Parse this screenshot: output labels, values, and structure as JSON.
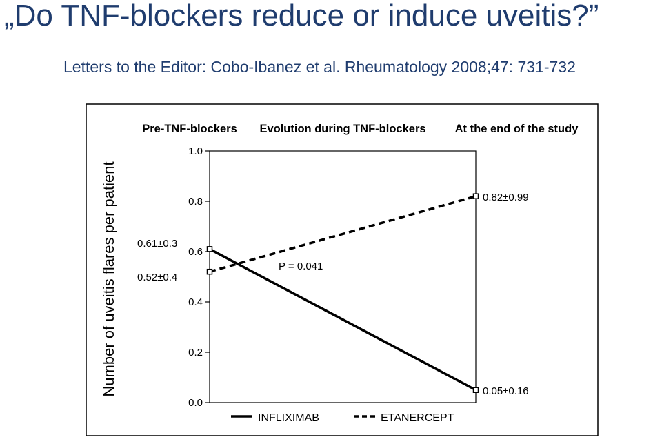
{
  "slide": {
    "title": "„Do TNF-blockers reduce or induce uveitis?”",
    "subtitle": "Letters to the Editor: Cobo-Ibanez et al. Rheumatology 2008;47: 731-732"
  },
  "chart_data": {
    "type": "line",
    "title": "",
    "column_headers": [
      "Pre-TNF-blockers",
      "Evolution during TNF-blockers",
      "At the end of the study"
    ],
    "ylabel": "Number of uveitis flares per patient",
    "xlabel": "",
    "ylim": [
      0.0,
      1.0
    ],
    "yticks": [
      0.0,
      0.2,
      0.4,
      0.6,
      0.8,
      1.0
    ],
    "ytick_labels": [
      "0.0",
      "0.2",
      "0.4",
      "0.6",
      "0.8",
      "1.0"
    ],
    "categories": [
      "Pre-TNF-blockers",
      "At the end of the study"
    ],
    "series": [
      {
        "name": "INFLIXIMAB",
        "style": "solid",
        "values": [
          0.61,
          0.05
        ],
        "labels": [
          "0.61±0.3",
          "0.05±0.16"
        ]
      },
      {
        "name": "ETANERCEPT",
        "style": "dashed",
        "values": [
          0.52,
          0.82
        ],
        "labels": [
          "0.52±0.4",
          "0.82±0.99"
        ]
      }
    ],
    "annotations": [
      "P = 0.041"
    ],
    "grid": false,
    "legend_position": "bottom"
  }
}
